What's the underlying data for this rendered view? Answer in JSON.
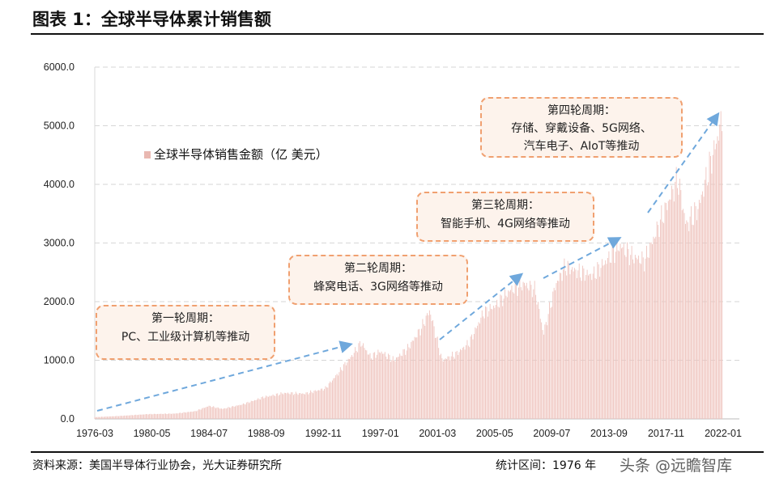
{
  "title": "图表 1：全球半导体累计销售额",
  "footer": {
    "source": "资料来源：美国半导体行业协会，光大证券研究所",
    "range": "统计区间：1976 年",
    "watermark": "头条 @远瞻智库"
  },
  "legend": "全球半导体销售金额（亿 美元）",
  "annotations": [
    {
      "title": "第一轮周期：",
      "text": "PC、工业级计算机等推动"
    },
    {
      "title": "第二轮周期：",
      "text": "蜂窝电话、3G网络等推动"
    },
    {
      "title": "第三轮周期：",
      "text": "智能手机、4G网络等推动"
    },
    {
      "title": "第四轮周期：",
      "text": "存储、穿戴设备、5G网络、",
      "text2": "汽车电子、AIoT等推动"
    }
  ],
  "colors": {
    "bars": "#efc4be",
    "arrows": "#6fa8dc",
    "box_border": "#f0a070",
    "box_fill": "#fdf3ec"
  },
  "chart_data": {
    "type": "bar",
    "ylim": [
      0,
      6000
    ],
    "yticks": [
      "0.0",
      "1000.0",
      "2000.0",
      "3000.0",
      "4000.0",
      "5000.0",
      "6000.0"
    ],
    "xticks": [
      "1976-03",
      "1980-05",
      "1984-07",
      "1988-09",
      "1992-11",
      "1997-01",
      "2001-03",
      "2005-05",
      "2009-07",
      "2013-09",
      "2017-11",
      "2022-01"
    ],
    "grid": "horizontal dashed",
    "legend_position": "upper-left",
    "series": [
      {
        "name": "全球半导体销售金额（亿 美元）",
        "x": [
          1976.2,
          1978,
          1980,
          1982,
          1983.5,
          1984.5,
          1985.5,
          1987,
          1988.5,
          1990,
          1991.5,
          1993,
          1994,
          1995,
          1995.6,
          1996.3,
          1997,
          1998,
          1999,
          2000,
          2000.6,
          2001.5,
          2002.5,
          2003.5,
          2004.5,
          2005.5,
          2006.5,
          2007.5,
          2008.3,
          2008.9,
          2009.8,
          2010.5,
          2011.5,
          2012.5,
          2013.5,
          2014.5,
          2015.5,
          2016.3,
          2017.3,
          2018.7,
          2019.3,
          2020.2,
          2021,
          2021.6,
          2022.0
        ],
        "values": [
          30,
          50,
          80,
          90,
          130,
          220,
          170,
          250,
          370,
          440,
          430,
          520,
          800,
          1100,
          1300,
          1050,
          1150,
          1000,
          1200,
          1550,
          1850,
          1000,
          1100,
          1300,
          1800,
          1950,
          2200,
          2300,
          2200,
          1450,
          2300,
          2600,
          2500,
          2450,
          2700,
          2950,
          2750,
          2700,
          3300,
          4100,
          3300,
          3600,
          4300,
          4800,
          5200
        ]
      }
    ]
  }
}
